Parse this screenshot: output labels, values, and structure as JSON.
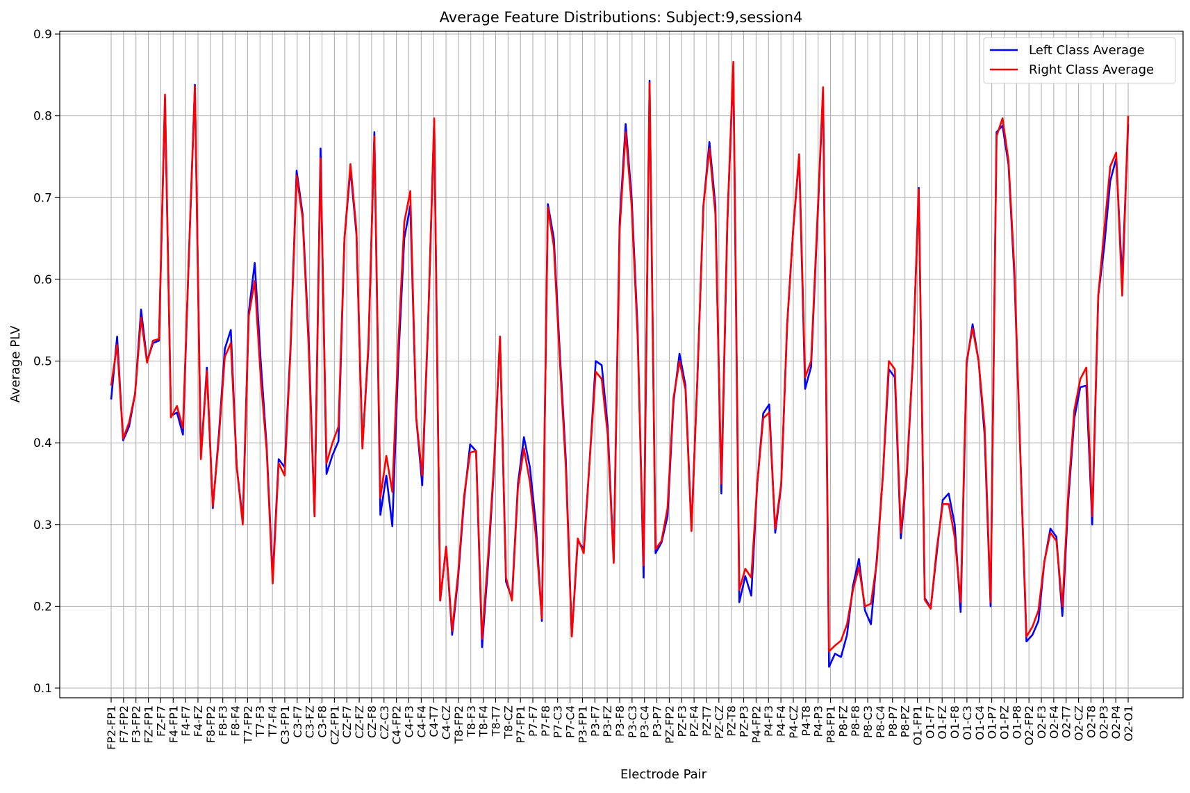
{
  "chart_data": {
    "type": "line",
    "title": "Average Feature Distributions: Subject:9,session4",
    "xlabel": "Electrode Pair",
    "ylabel": "Average PLV",
    "ylim": [
      0.09,
      0.9
    ],
    "yticks": [
      0.1,
      0.2,
      0.3,
      0.4,
      0.5,
      0.6,
      0.7,
      0.8,
      0.9
    ],
    "grid": true,
    "legend_position": "top-right",
    "x_labels": [
      "FP2-FP1",
      "F7-FP2",
      "F3-FP2",
      "FZ-FP1",
      "FZ-F7",
      "F4-FP1",
      "F4-F7",
      "F4-FZ",
      "F8-FP2",
      "F8-F3",
      "F8-F4",
      "T7-FP2",
      "T7-F3",
      "T7-F4",
      "C3-FP1",
      "C3-F7",
      "C3-FZ",
      "C3-F8",
      "CZ-FP1",
      "CZ-F7",
      "CZ-FZ",
      "CZ-F8",
      "CZ-C3",
      "C4-FP2",
      "C4-F3",
      "C4-F4",
      "C4-T7",
      "C4-CZ",
      "T8-FP2",
      "T8-F3",
      "T8-F4",
      "T8-T7",
      "T8-CZ",
      "P7-FP1",
      "P7-F7",
      "P7-F8",
      "P7-C3",
      "P7-C4",
      "P3-FP1",
      "P3-F7",
      "P3-FZ",
      "P3-F8",
      "P3-C3",
      "P3-C4",
      "P3-P7",
      "PZ-FP2",
      "PZ-F3",
      "PZ-F4",
      "PZ-T7",
      "PZ-CZ",
      "PZ-T8",
      "PZ-P3",
      "P4-FP2",
      "P4-F3",
      "P4-F4",
      "P4-CZ",
      "P4-T8",
      "P4-P3",
      "P8-FP1",
      "P8-FZ",
      "P8-F8",
      "P8-C3",
      "P8-C4",
      "P8-P7",
      "P8-PZ",
      "O1-FP1",
      "O1-F7",
      "O1-FZ",
      "O1-F8",
      "O1-C3",
      "O1-C4",
      "O1-P7",
      "O1-PZ",
      "O1-P8",
      "O2-FP2",
      "O2-F3",
      "O2-F4",
      "O2-T7",
      "O2-CZ",
      "O2-T8",
      "O2-P3",
      "O2-P4",
      "O2-O1"
    ],
    "series": [
      {
        "name": "Left Class Average",
        "color": "#0000ff",
        "values": [
          0.453,
          0.53,
          0.403,
          0.42,
          0.46,
          0.563,
          0.5,
          0.522,
          0.525,
          0.822,
          0.433,
          0.437,
          0.41,
          0.63,
          0.838,
          0.382,
          0.492,
          0.32,
          0.41,
          0.515,
          0.538,
          0.37,
          0.305,
          0.56,
          0.62,
          0.5,
          0.395,
          0.235,
          0.38,
          0.37,
          0.52,
          0.733,
          0.68,
          0.53,
          0.31,
          0.76,
          0.362,
          0.385,
          0.402,
          0.65,
          0.735,
          0.655,
          0.395,
          0.515,
          0.78,
          0.312,
          0.36,
          0.298,
          0.5,
          0.65,
          0.69,
          0.43,
          0.348,
          0.55,
          0.795,
          0.207,
          0.273,
          0.165,
          0.235,
          0.33,
          0.398,
          0.39,
          0.15,
          0.25,
          0.37,
          0.53,
          0.23,
          0.21,
          0.35,
          0.407,
          0.37,
          0.3,
          0.182,
          0.692,
          0.65,
          0.51,
          0.38,
          0.163,
          0.28,
          0.27,
          0.38,
          0.5,
          0.495,
          0.42,
          0.255,
          0.67,
          0.79,
          0.7,
          0.54,
          0.235,
          0.843,
          0.265,
          0.278,
          0.31,
          0.45,
          0.509,
          0.47,
          0.295,
          0.48,
          0.69,
          0.768,
          0.69,
          0.338,
          0.67,
          0.86,
          0.205,
          0.237,
          0.213,
          0.35,
          0.436,
          0.447,
          0.29,
          0.348,
          0.545,
          0.66,
          0.75,
          0.466,
          0.493,
          0.66,
          0.83,
          0.126,
          0.142,
          0.138,
          0.165,
          0.225,
          0.258,
          0.195,
          0.178,
          0.26,
          0.36,
          0.49,
          0.48,
          0.283,
          0.36,
          0.5,
          0.712,
          0.21,
          0.198,
          0.265,
          0.33,
          0.338,
          0.3,
          0.193,
          0.497,
          0.545,
          0.5,
          0.41,
          0.2,
          0.78,
          0.788,
          0.74,
          0.6,
          0.38,
          0.157,
          0.165,
          0.182,
          0.255,
          0.295,
          0.285,
          0.188,
          0.33,
          0.43,
          0.468,
          0.47,
          0.3,
          0.58,
          0.64,
          0.72,
          0.748,
          0.6,
          0.79
        ]
      },
      {
        "name": "Right Class Average",
        "color": "#ff0000",
        "values": [
          0.47,
          0.52,
          0.405,
          0.425,
          0.46,
          0.553,
          0.498,
          0.525,
          0.527,
          0.826,
          0.431,
          0.445,
          0.418,
          0.63,
          0.836,
          0.38,
          0.488,
          0.322,
          0.405,
          0.505,
          0.522,
          0.37,
          0.3,
          0.555,
          0.598,
          0.48,
          0.39,
          0.228,
          0.375,
          0.36,
          0.515,
          0.727,
          0.675,
          0.52,
          0.31,
          0.748,
          0.375,
          0.4,
          0.42,
          0.65,
          0.741,
          0.66,
          0.393,
          0.52,
          0.775,
          0.333,
          0.384,
          0.34,
          0.52,
          0.67,
          0.708,
          0.43,
          0.36,
          0.55,
          0.797,
          0.207,
          0.273,
          0.17,
          0.24,
          0.335,
          0.388,
          0.39,
          0.16,
          0.26,
          0.375,
          0.53,
          0.235,
          0.207,
          0.345,
          0.393,
          0.352,
          0.285,
          0.185,
          0.688,
          0.64,
          0.5,
          0.37,
          0.163,
          0.283,
          0.265,
          0.38,
          0.487,
          0.478,
          0.41,
          0.253,
          0.66,
          0.78,
          0.69,
          0.53,
          0.25,
          0.84,
          0.27,
          0.28,
          0.32,
          0.455,
          0.5,
          0.465,
          0.292,
          0.48,
          0.69,
          0.76,
          0.68,
          0.35,
          0.67,
          0.866,
          0.22,
          0.246,
          0.235,
          0.35,
          0.43,
          0.437,
          0.295,
          0.35,
          0.545,
          0.66,
          0.753,
          0.48,
          0.5,
          0.665,
          0.835,
          0.145,
          0.152,
          0.158,
          0.178,
          0.22,
          0.248,
          0.2,
          0.203,
          0.255,
          0.36,
          0.5,
          0.49,
          0.29,
          0.365,
          0.5,
          0.71,
          0.208,
          0.197,
          0.27,
          0.325,
          0.325,
          0.285,
          0.205,
          0.5,
          0.54,
          0.5,
          0.42,
          0.205,
          0.775,
          0.797,
          0.745,
          0.61,
          0.38,
          0.163,
          0.175,
          0.195,
          0.255,
          0.29,
          0.28,
          0.2,
          0.34,
          0.44,
          0.478,
          0.492,
          0.31,
          0.58,
          0.66,
          0.738,
          0.755,
          0.58,
          0.8
        ]
      }
    ]
  }
}
